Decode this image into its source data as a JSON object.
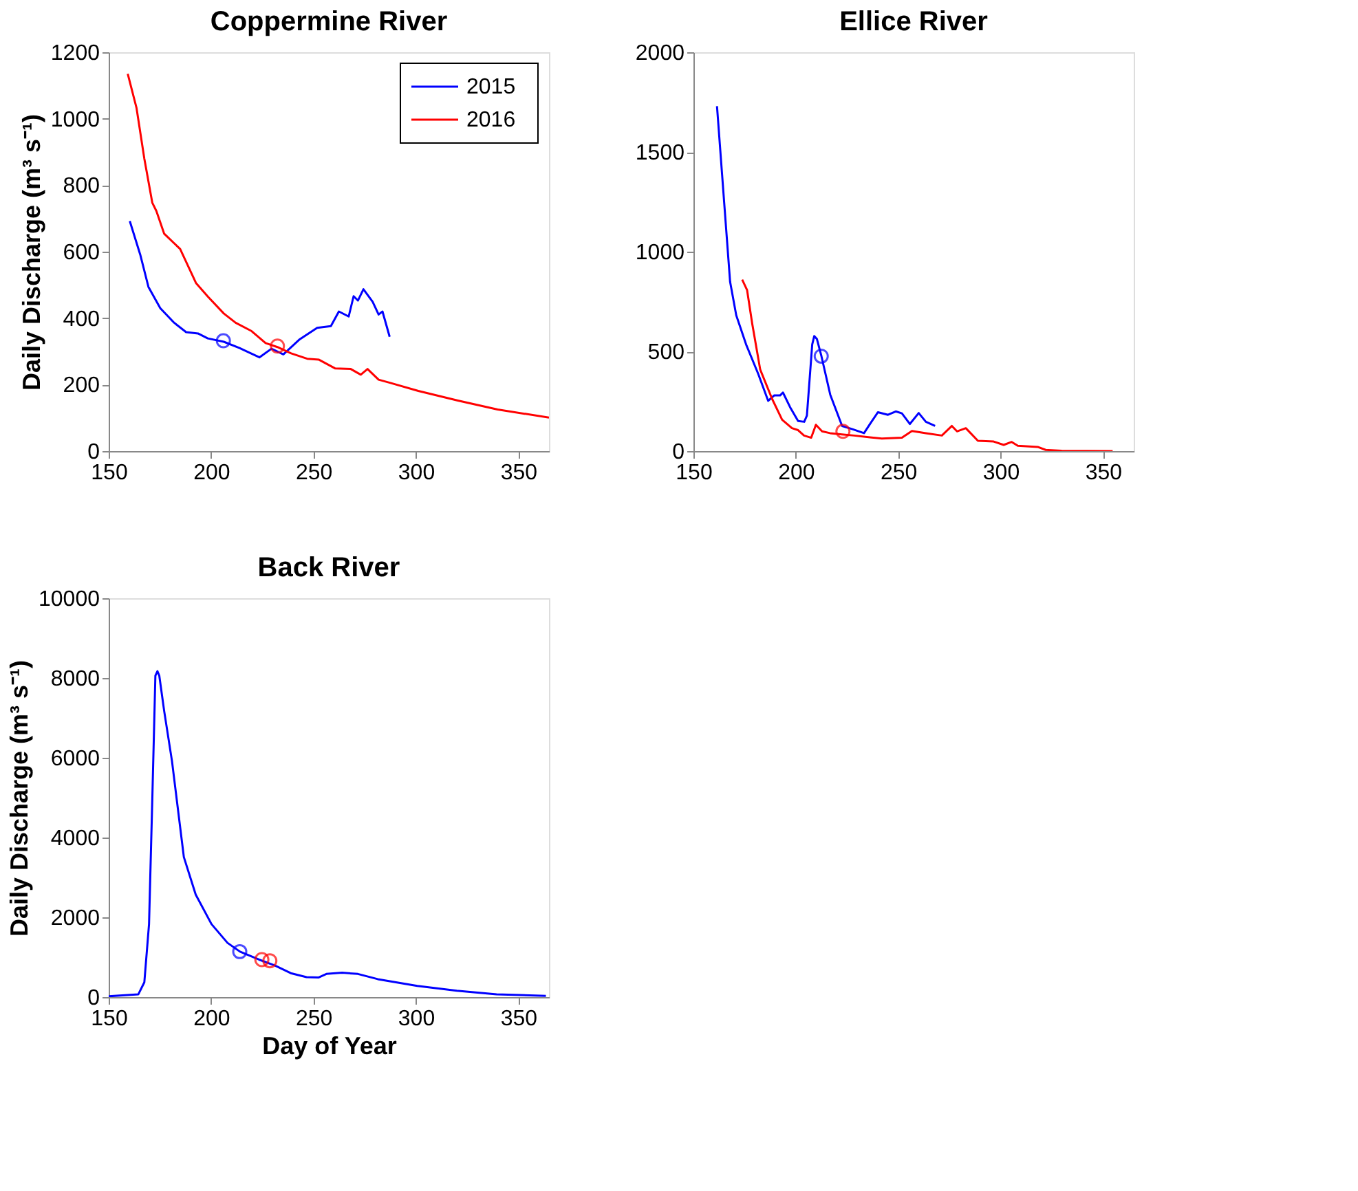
{
  "chart_data": [
    {
      "type": "line",
      "title": "Coppermine River",
      "ylabel": "Daily Discharge (m³ s⁻¹)",
      "xlim": [
        150,
        365
      ],
      "xticks": [
        150,
        200,
        250,
        300,
        350
      ],
      "ylim": [
        0,
        1200
      ],
      "yticks": [
        0,
        200,
        400,
        600,
        800,
        1000,
        1200
      ],
      "grid": false,
      "legend": "top right",
      "series": [
        {
          "name": "2015",
          "color": "#0000ff",
          "x": [
            160.3,
            165.5,
            169.4,
            175.2,
            182,
            187.8,
            193.6,
            198.4,
            206.2,
            213.9,
            223.6,
            229.5,
            235.3,
            243,
            251.8,
            258.5,
            262.4,
            267.2,
            269.6,
            271.7,
            274.4,
            278.9,
            281.8,
            283.7,
            287.2
          ],
          "values": [
            692,
            589,
            494,
            430,
            386,
            358,
            354,
            339,
            329,
            310,
            282,
            308,
            291,
            335,
            371,
            376,
            420,
            405,
            466,
            453,
            487,
            449,
            411,
            420,
            344
          ]
        },
        {
          "name": "2016",
          "color": "#ff0000",
          "x": [
            159.3,
            163.6,
            167.4,
            171.3,
            173.3,
            177.1,
            184.9,
            192.6,
            198.4,
            206.2,
            212,
            219.8,
            226.6,
            232.4,
            239.1,
            246.9,
            252.7,
            260.5,
            268.2,
            273.1,
            276.4,
            281.8,
            287.6,
            301.2,
            320.5,
            339.9,
            365
          ],
          "values": [
            1135,
            1032,
            880,
            747,
            722,
            654,
            608,
            506,
            465,
            414,
            386,
            361,
            325,
            313,
            294,
            278,
            275,
            249,
            247,
            230,
            247,
            215,
            205,
            181,
            152,
            125,
            101
          ]
        },
        {
          "type": "scatter",
          "marker": "circle",
          "color": "#0000ff",
          "x": [
            206
          ],
          "values": [
            332
          ]
        },
        {
          "type": "scatter",
          "marker": "circle",
          "color": "#ff0000",
          "x": [
            232.4
          ],
          "values": [
            316
          ]
        }
      ]
    },
    {
      "type": "line",
      "title": "Ellice River",
      "xlim": [
        150,
        365
      ],
      "xticks": [
        150,
        200,
        250,
        300,
        350
      ],
      "ylim": [
        0,
        2000
      ],
      "yticks": [
        0,
        500,
        1000,
        1500,
        2000
      ],
      "grid": false,
      "legend": false,
      "series": [
        {
          "color": "#0000ff",
          "x": [
            161.5,
            165,
            167.9,
            170.9,
            175.7,
            181.6,
            186.5,
            189.4,
            192.3,
            193.7,
            197.2,
            201.1,
            204.1,
            205.4,
            208,
            209,
            210.3,
            212.5,
            216.8,
            222.6,
            227.4,
            233.3,
            236.2,
            240.1,
            245,
            248.8,
            251.8,
            255.7,
            260,
            263.5,
            268
          ],
          "values": [
            1730,
            1247,
            849,
            681,
            535,
            388,
            252,
            279,
            279,
            294,
            220,
            151,
            147,
            178,
            535,
            577,
            562,
            476,
            283,
            126,
            111,
            90,
            136,
            195,
            182,
            199,
            189,
            136,
            191,
            147,
            126
          ]
        },
        {
          "color": "#ff0000",
          "x": [
            173.8,
            176.2,
            178.7,
            182.6,
            188.4,
            193.3,
            198.1,
            201.1,
            204,
            207.5,
            209.8,
            212.8,
            216.7,
            222.5,
            228.4,
            236.2,
            242,
            251.8,
            256.7,
            263.5,
            271.3,
            276.2,
            278.7,
            283,
            288.9,
            296.6,
            301.5,
            305.4,
            308.4,
            318.1,
            322,
            329.8,
            354.7
          ],
          "values": [
            860,
            807,
            639,
            409,
            262,
            157,
            115,
            105,
            78,
            67,
            132,
            99,
            90,
            84,
            78,
            69,
            63,
            67,
            101,
            90,
            78,
            126,
            99,
            115,
            52,
            48,
            31,
            46,
            27,
            21,
            6,
            2,
            0
          ]
        },
        {
          "type": "scatter",
          "marker": "circle",
          "color": "#0000ff",
          "x": [
            212.4
          ],
          "values": [
            476
          ]
        },
        {
          "type": "scatter",
          "marker": "circle",
          "color": "#ff0000",
          "x": [
            223
          ],
          "values": [
            99
          ]
        }
      ]
    },
    {
      "type": "line",
      "title": "Back River",
      "xlabel": "Day of Year",
      "ylabel": "Daily Discharge (m³ s⁻¹)",
      "xlim": [
        150,
        365
      ],
      "xticks": [
        150,
        200,
        250,
        300,
        350
      ],
      "ylim": [
        0,
        10000
      ],
      "yticks": [
        0,
        2000,
        4000,
        6000,
        8000,
        10000
      ],
      "grid": false,
      "legend": false,
      "series": [
        {
          "color": "#0000ff",
          "x": [
            150,
            164.5,
            167.4,
            169.7,
            171.3,
            172.8,
            173.8,
            174.7,
            177.1,
            180.9,
            186.7,
            192.5,
            200.2,
            208,
            214.1,
            223.4,
            231.2,
            238.9,
            246.6,
            252.4,
            256.3,
            264,
            271.7,
            281.4,
            300.7,
            320,
            339.4,
            363.5
          ],
          "values": [
            20,
            70,
            370,
            1830,
            4970,
            8060,
            8170,
            8060,
            7170,
            5920,
            3510,
            2570,
            1830,
            1360,
            1140,
            940,
            790,
            600,
            500,
            490,
            580,
            610,
            580,
            450,
            280,
            160,
            70,
            30
          ]
        },
        {
          "type": "scatter",
          "marker": "circle",
          "color": "#0000ff",
          "x": [
            214
          ],
          "values": [
            1140
          ]
        },
        {
          "type": "scatter",
          "marker": "circle",
          "color": "#ff0000",
          "x": [
            224.8,
            228.7
          ],
          "values": [
            940,
            910
          ]
        }
      ]
    }
  ]
}
